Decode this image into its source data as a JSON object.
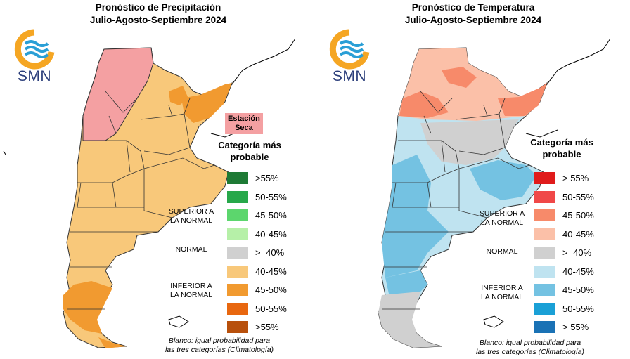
{
  "precipitation": {
    "title_line1": "Pronóstico de Precipitación",
    "title_line2": "Julio-Agosto-Septiembre 2024",
    "logo_text": "SMN",
    "dry_season_label_line1": "Estación",
    "dry_season_label_line2": "Seca",
    "legend_title_line1": "Categoría más",
    "legend_title_line2": "probable",
    "legend_items": [
      {
        "label": ">55%",
        "color": "#1e7a35"
      },
      {
        "label": "50-55%",
        "color": "#27a84a"
      },
      {
        "label": "45-50%",
        "color": "#5cd66d"
      },
      {
        "label": "40-45%",
        "color": "#b6f0a8"
      },
      {
        "label": ">=40%",
        "color": "#d0d0d0"
      },
      {
        "label": "40-45%",
        "color": "#f8c87a"
      },
      {
        "label": "45-50%",
        "color": "#f19a30"
      },
      {
        "label": "50-55%",
        "color": "#e8670f"
      },
      {
        "label": ">55%",
        "color": "#b8500c"
      }
    ],
    "group_superior_line1": "SUPERIOR A",
    "group_superior_line2": "LA NORMAL",
    "group_normal": "NORMAL",
    "group_inferior_line1": "INFERIOR A",
    "group_inferior_line2": "LA NORMAL",
    "footnote_line1": "Blanco: igual probabilidad para",
    "footnote_line2": "las tres categorías (Climatología)"
  },
  "temperature": {
    "title_line1": "Pronóstico de Temperatura",
    "title_line2": "Julio-Agosto-Septiembre 2024",
    "logo_text": "SMN",
    "legend_title_line1": "Categoría más",
    "legend_title_line2": "probable",
    "legend_items": [
      {
        "label": "> 55%",
        "color": "#e01b1b"
      },
      {
        "label": "50-55%",
        "color": "#f04848"
      },
      {
        "label": "45-50%",
        "color": "#f78a6a"
      },
      {
        "label": "40-45%",
        "color": "#fbc0a8"
      },
      {
        "label": ">=40%",
        "color": "#d0d0d0"
      },
      {
        "label": "40-45%",
        "color": "#bfe3f0"
      },
      {
        "label": "45-50%",
        "color": "#74c2e2"
      },
      {
        "label": "50-55%",
        "color": "#1aa0d6"
      },
      {
        "label": "> 55%",
        "color": "#1a72b5"
      }
    ],
    "group_superior_line1": "SUPERIOR A",
    "group_superior_line2": "LA NORMAL",
    "group_normal": "NORMAL",
    "group_inferior_line1": "INFERIOR A",
    "group_inferior_line2": "LA NORMAL",
    "footnote_line1": "Blanco: igual probabilidad para",
    "footnote_line2": "las tres categorías (Climatología)"
  },
  "colors": {
    "logo_orange": "#f5a623",
    "logo_blue": "#2a9fd6",
    "logo_text": "#2a3d7a"
  }
}
